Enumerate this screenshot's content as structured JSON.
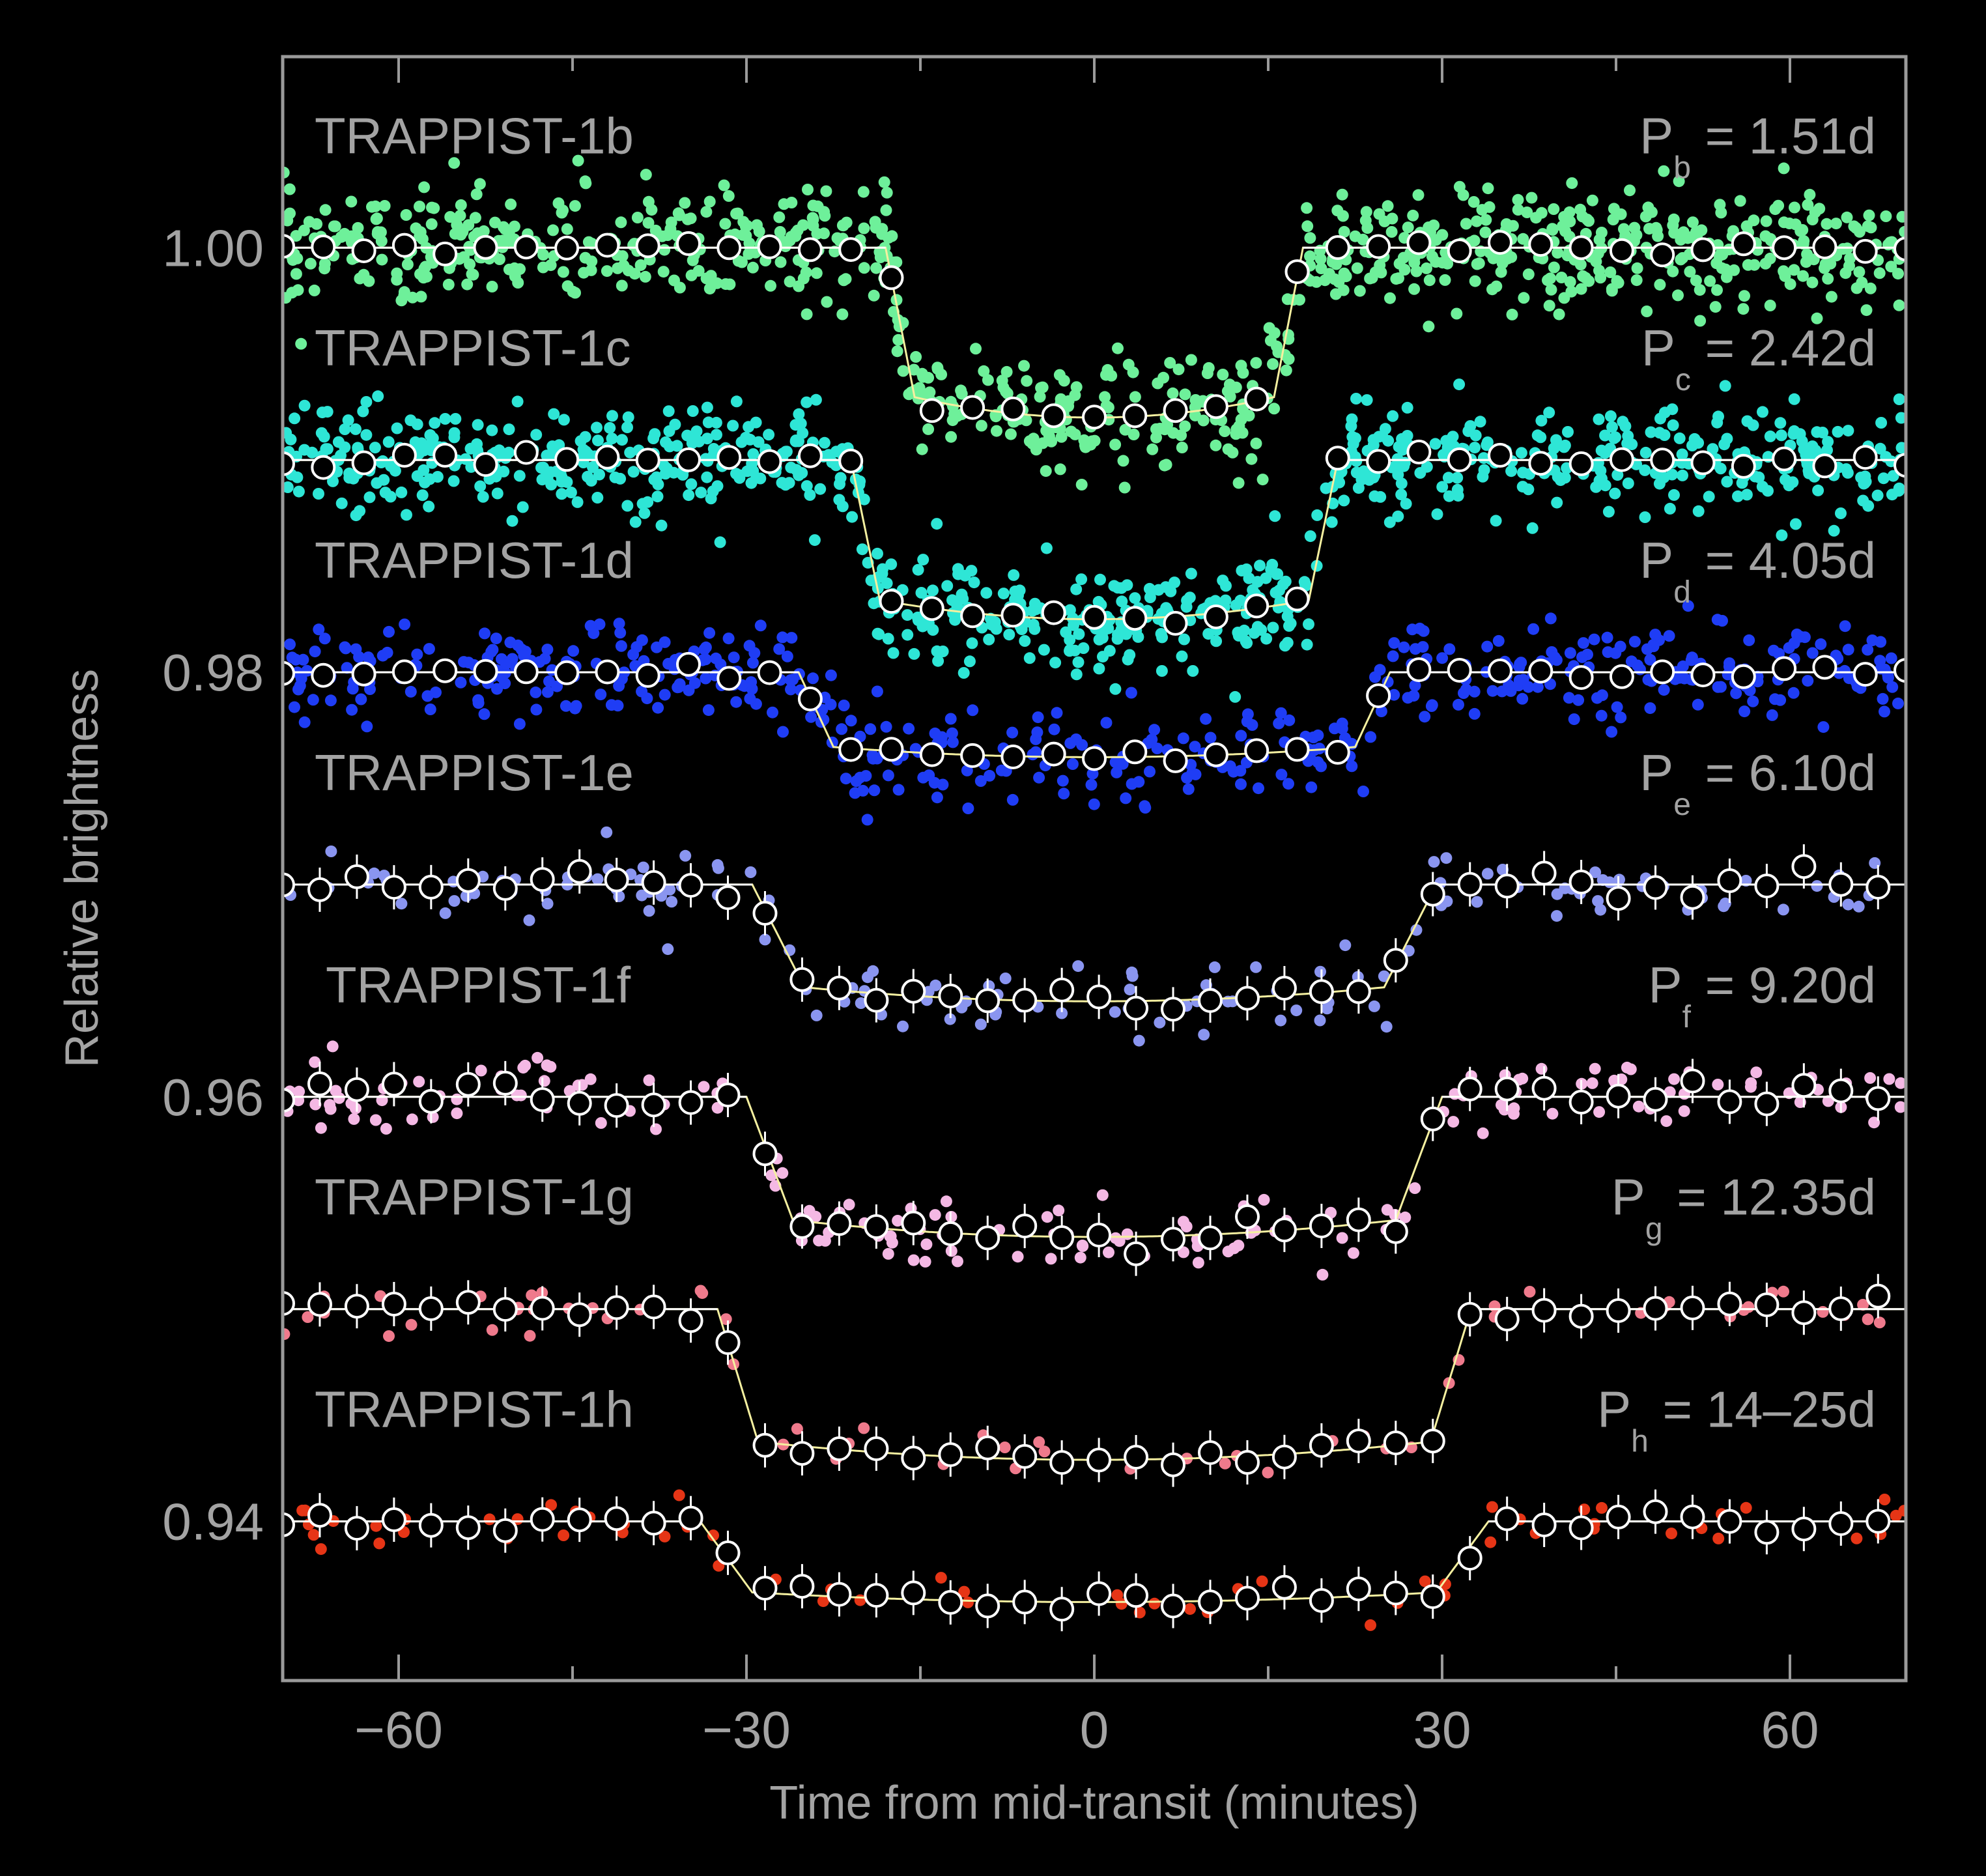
{
  "chart_data": {
    "type": "scatter",
    "xlabel": "Time from mid-transit (minutes)",
    "ylabel": "Relative brightness",
    "xlim": [
      -70,
      70
    ],
    "ylim": [
      0.9325,
      1.009
    ],
    "x_ticks": [
      -60,
      -30,
      0,
      30,
      60
    ],
    "x_tick_labels": [
      "−60",
      "−30",
      "0",
      "30",
      "60"
    ],
    "y_ticks": [
      0.94,
      0.96,
      0.98,
      1.0
    ],
    "y_tick_labels": [
      "0.94",
      "0.96",
      "0.98",
      "1.00"
    ],
    "grid": false,
    "series": [
      {
        "name": "TRAPPIST-1b",
        "period_symbol": "P",
        "period_sub": "b",
        "period_value": " = 1.51d",
        "color": "#6ef09a",
        "baseline": 1.0,
        "depth": 0.008,
        "half_duration": 18.0,
        "ingress": 2.5,
        "raw_points": 900,
        "raw_noise": 0.0013
      },
      {
        "name": "TRAPPIST-1c",
        "period_symbol": "P",
        "period_sub": "c",
        "period_value": " = 2.42d",
        "color": "#2ee6d6",
        "baseline": 0.99,
        "depth": 0.0075,
        "half_duration": 21.0,
        "ingress": 2.5,
        "raw_points": 900,
        "raw_noise": 0.0012
      },
      {
        "name": "TRAPPIST-1d",
        "period_symbol": "P",
        "period_sub": "d",
        "period_value": " = 4.05d",
        "color": "#1f3df5",
        "baseline": 0.98,
        "depth": 0.004,
        "half_duration": 25.5,
        "ingress": 3.0,
        "raw_points": 520,
        "raw_noise": 0.0011
      },
      {
        "name": "TRAPPIST-1e",
        "period_symbol": "P",
        "period_sub": "e",
        "period_value": " = 6.10d",
        "color": "#8a95f0",
        "baseline": 0.97,
        "depth": 0.0055,
        "half_duration": 29.5,
        "ingress": 4.5,
        "raw_points": 160,
        "raw_noise": 0.0009
      },
      {
        "name": "TRAPPIST-1f",
        "period_symbol": "P",
        "period_sub": "f",
        "period_value": " = 9.20d",
        "color": "#f4b8e4",
        "baseline": 0.96,
        "depth": 0.0066,
        "half_duration": 30.0,
        "ingress": 4.0,
        "raw_points": 190,
        "raw_noise": 0.0008
      },
      {
        "name": "TRAPPIST-1g",
        "period_symbol": "P",
        "period_sub": "g",
        "period_value": " = 12.35d",
        "color": "#ef7a8c",
        "baseline": 0.95,
        "depth": 0.0071,
        "half_duration": 32.5,
        "ingress": 3.5,
        "raw_points": 70,
        "raw_noise": 0.0006
      },
      {
        "name": "TRAPPIST-1h",
        "period_symbol": "P",
        "period_sub": "h",
        "period_value": " = 14–25d",
        "color": "#e63516",
        "baseline": 0.94,
        "depth": 0.0038,
        "half_duration": 34.0,
        "ingress": 4.5,
        "raw_points": 75,
        "raw_noise": 0.0006
      }
    ]
  }
}
